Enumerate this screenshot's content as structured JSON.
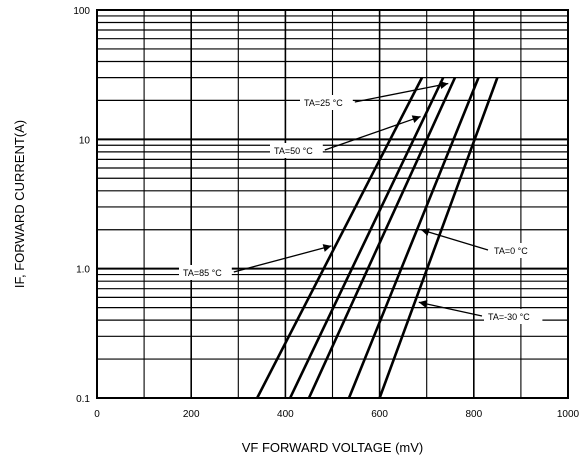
{
  "chart_data": {
    "type": "line",
    "title": "",
    "xlabel": "VF FORWARD VOLTAGE (mV)",
    "ylabel": "IF, FORWARD CURRENT(A)",
    "xlim": [
      0,
      1000
    ],
    "ylim": [
      0.1,
      100
    ],
    "y_scale": "log",
    "grid": true,
    "x_ticks": [
      "0",
      "200",
      "400",
      "600",
      "800",
      "1000"
    ],
    "y_ticks": [
      "0.1",
      "1.0",
      "10",
      "100"
    ],
    "line_color": "#000000",
    "grid_color": "#000000",
    "series": [
      {
        "name": "TA=85 °C",
        "x": [
          340,
          690
        ],
        "y": [
          0.1,
          30
        ]
      },
      {
        "name": "TA=50 °C",
        "x": [
          410,
          735
        ],
        "y": [
          0.1,
          30
        ]
      },
      {
        "name": "TA=25 °C",
        "x": [
          450,
          760
        ],
        "y": [
          0.1,
          30
        ]
      },
      {
        "name": "TA=0 °C",
        "x": [
          535,
          810
        ],
        "y": [
          0.1,
          30
        ]
      },
      {
        "name": "TA=-30 °C",
        "x": [
          600,
          850
        ],
        "y": [
          0.1,
          30
        ]
      }
    ]
  }
}
